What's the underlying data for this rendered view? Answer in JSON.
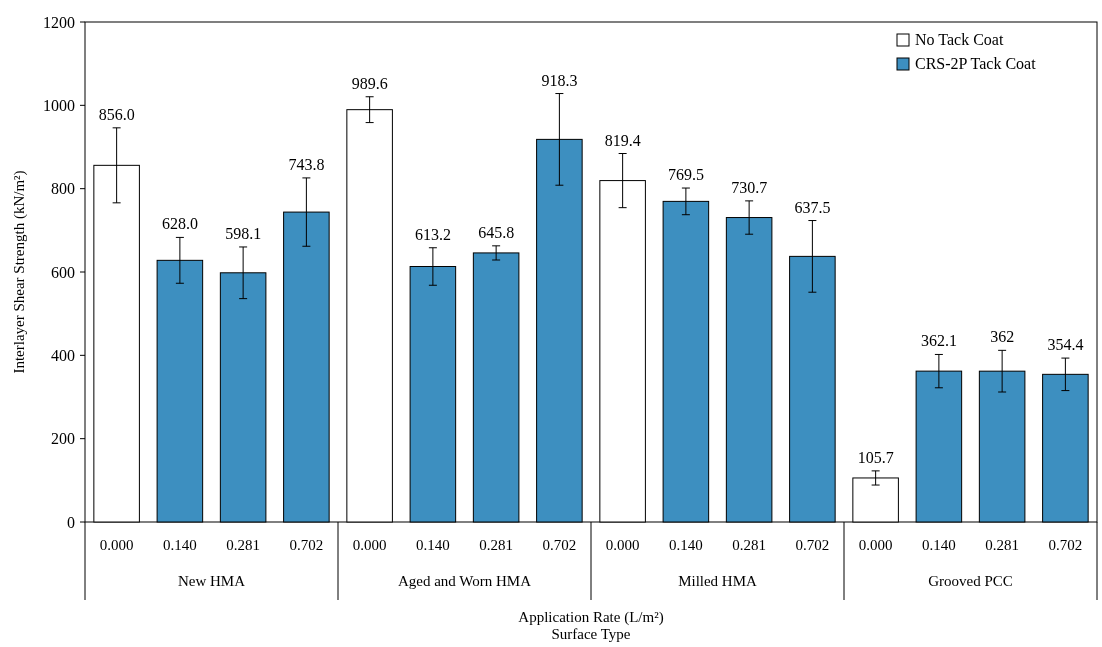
{
  "chart_data": {
    "type": "bar",
    "ylabel": "Interlayer Shear Strength (kN/m²)",
    "xlabel": "Application Rate (L/m²)\nSurface Type",
    "categories": [
      "0.000",
      "0.140",
      "0.281",
      "0.702",
      "0.000",
      "0.140",
      "0.281",
      "0.702",
      "0.000",
      "0.140",
      "0.281",
      "0.702",
      "0.000",
      "0.140",
      "0.281",
      "0.702"
    ],
    "annotations": [
      "New HMA",
      "Aged and Worn HMA",
      "Milled HMA",
      "Grooved PCC"
    ],
    "series": [
      {
        "name": "No Tack Coat",
        "color": "#ffffff",
        "values": [
          856.0,
          null,
          null,
          null,
          989.6,
          null,
          null,
          null,
          819.4,
          null,
          null,
          null,
          105.7,
          null,
          null,
          null
        ],
        "errors": [
          90,
          null,
          null,
          null,
          31,
          null,
          null,
          null,
          65,
          null,
          null,
          null,
          17,
          null,
          null,
          null
        ],
        "value_labels": [
          "856.0",
          null,
          null,
          null,
          "989.6",
          null,
          null,
          null,
          "819.4",
          null,
          null,
          null,
          "105.7",
          null,
          null,
          null
        ]
      },
      {
        "name": "CRS-2P Tack Coat",
        "color": "#3d8fc0",
        "values": [
          null,
          628.0,
          598.1,
          743.8,
          null,
          613.2,
          645.8,
          918.3,
          null,
          769.5,
          730.7,
          637.5,
          null,
          362.1,
          362,
          354.4
        ],
        "errors": [
          null,
          55,
          62,
          82,
          null,
          45,
          17,
          110,
          null,
          32,
          40,
          86,
          null,
          40,
          50,
          39
        ],
        "value_labels": [
          null,
          "628.0",
          "598.1",
          "743.8",
          null,
          "613.2",
          "645.8",
          "918.3",
          null,
          "769.5",
          "730.7",
          "637.5",
          null,
          "362.1",
          "362",
          "354.4"
        ]
      }
    ],
    "ylim": [
      0,
      1200
    ],
    "yticks": [
      0,
      200,
      400,
      600,
      800,
      1000,
      1200
    ],
    "grid": false,
    "legend": "top right"
  }
}
